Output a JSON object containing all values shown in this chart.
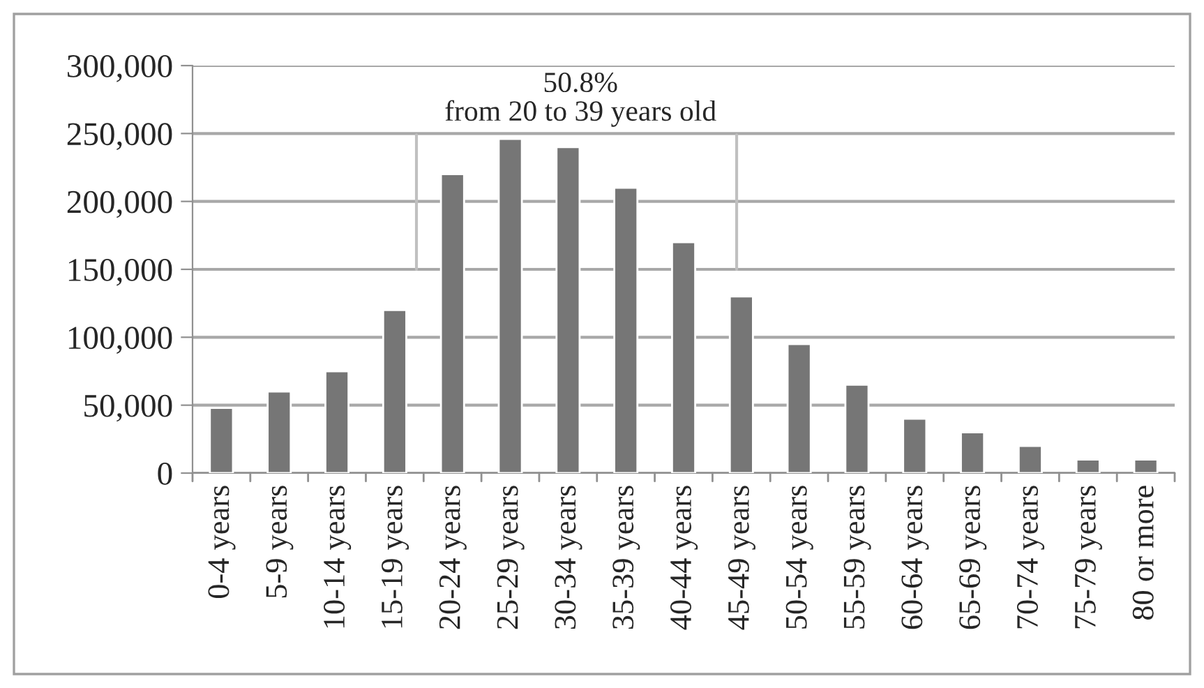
{
  "chart_data": {
    "type": "bar",
    "categories": [
      "0-4 years",
      "5-9 years",
      "10-14 years",
      "15-19 years",
      "20-24 years",
      "25-29 years",
      "30-34 years",
      "35-39 years",
      "40-44 years",
      "45-49 years",
      "50-54 years",
      "55-59 years",
      "60-64 years",
      "65-69 years",
      "70-74 years",
      "75-79 years",
      "80 or more"
    ],
    "values": [
      48000,
      60000,
      75000,
      120000,
      220000,
      246000,
      240000,
      210000,
      170000,
      130000,
      95000,
      65000,
      40000,
      30000,
      20000,
      10000,
      10000
    ],
    "color": "#767676",
    "ylim": [
      0,
      300000
    ],
    "yticks": [
      {
        "value": 0,
        "label": "0"
      },
      {
        "value": 50000,
        "label": "50,000"
      },
      {
        "value": 100000,
        "label": "100,000"
      },
      {
        "value": 150000,
        "label": "150,000"
      },
      {
        "value": 200000,
        "label": "200,000"
      },
      {
        "value": 250000,
        "label": "250,000"
      },
      {
        "value": 300000,
        "label": "300,000"
      }
    ],
    "grid": "y",
    "annotations": [
      "50.8%\nfrom 20 to 39 years old"
    ]
  }
}
